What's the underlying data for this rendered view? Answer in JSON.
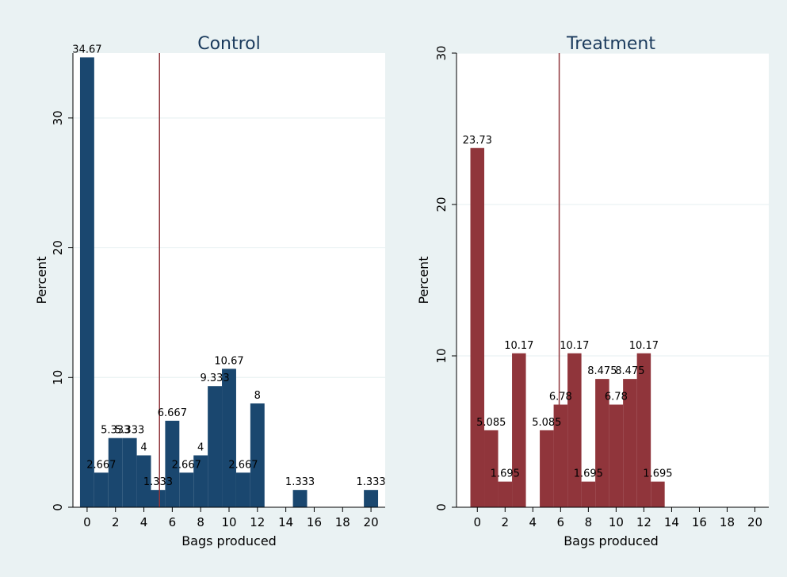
{
  "chart_data": [
    {
      "type": "bar",
      "title": "Control",
      "xlabel": "Bags produced",
      "ylabel": "Percent",
      "xlim": [
        -1,
        21
      ],
      "ylim": [
        0,
        35
      ],
      "grid": true,
      "bar_color": "#1a476f",
      "x_ticks": [
        0,
        2,
        4,
        6,
        8,
        10,
        12,
        14,
        16,
        18,
        20
      ],
      "y_ticks": [
        0,
        10,
        20,
        30
      ],
      "vline_x": 5.1,
      "vline_color": "#90353b",
      "bars": [
        {
          "x": 0,
          "value": 34.67,
          "label": "34.67"
        },
        {
          "x": 1,
          "value": 2.667,
          "label": "2.667"
        },
        {
          "x": 2,
          "value": 5.333,
          "label": "5.333"
        },
        {
          "x": 3,
          "value": 5.333,
          "label": "5.333"
        },
        {
          "x": 4,
          "value": 4,
          "label": "4"
        },
        {
          "x": 5,
          "value": 1.333,
          "label": "1.333"
        },
        {
          "x": 6,
          "value": 6.667,
          "label": "6.667"
        },
        {
          "x": 7,
          "value": 2.667,
          "label": "2.667"
        },
        {
          "x": 8,
          "value": 4,
          "label": "4"
        },
        {
          "x": 9,
          "value": 9.333,
          "label": "9.333"
        },
        {
          "x": 10,
          "value": 10.67,
          "label": "10.67"
        },
        {
          "x": 11,
          "value": 2.667,
          "label": "2.667"
        },
        {
          "x": 12,
          "value": 8,
          "label": "8"
        },
        {
          "x": 15,
          "value": 1.333,
          "label": "1.333"
        },
        {
          "x": 20,
          "value": 1.333,
          "label": "1.333"
        }
      ]
    },
    {
      "type": "bar",
      "title": "Treatment",
      "xlabel": "Bags produced",
      "ylabel": "Percent",
      "xlim": [
        -1.5,
        21
      ],
      "ylim": [
        0,
        30
      ],
      "grid": true,
      "bar_color": "#90353b",
      "x_ticks": [
        0,
        2,
        4,
        6,
        8,
        10,
        12,
        14,
        16,
        18,
        20
      ],
      "y_ticks": [
        0,
        10,
        20,
        30
      ],
      "vline_x": 5.9,
      "vline_color": "#90353b",
      "bars": [
        {
          "x": 0,
          "value": 23.73,
          "label": "23.73"
        },
        {
          "x": 1,
          "value": 5.085,
          "label": "5.085"
        },
        {
          "x": 2,
          "value": 1.695,
          "label": "1.695"
        },
        {
          "x": 3,
          "value": 10.17,
          "label": "10.17"
        },
        {
          "x": 5,
          "value": 5.085,
          "label": "5.085"
        },
        {
          "x": 6,
          "value": 6.78,
          "label": "6.78"
        },
        {
          "x": 7,
          "value": 10.17,
          "label": "10.17"
        },
        {
          "x": 8,
          "value": 1.695,
          "label": "1.695"
        },
        {
          "x": 9,
          "value": 8.475,
          "label": "8.475"
        },
        {
          "x": 10,
          "value": 6.78,
          "label": "6.78"
        },
        {
          "x": 11,
          "value": 8.475,
          "label": "8.475"
        },
        {
          "x": 12,
          "value": 10.17,
          "label": "10.17"
        },
        {
          "x": 13,
          "value": 1.695,
          "label": "1.695"
        }
      ]
    }
  ]
}
